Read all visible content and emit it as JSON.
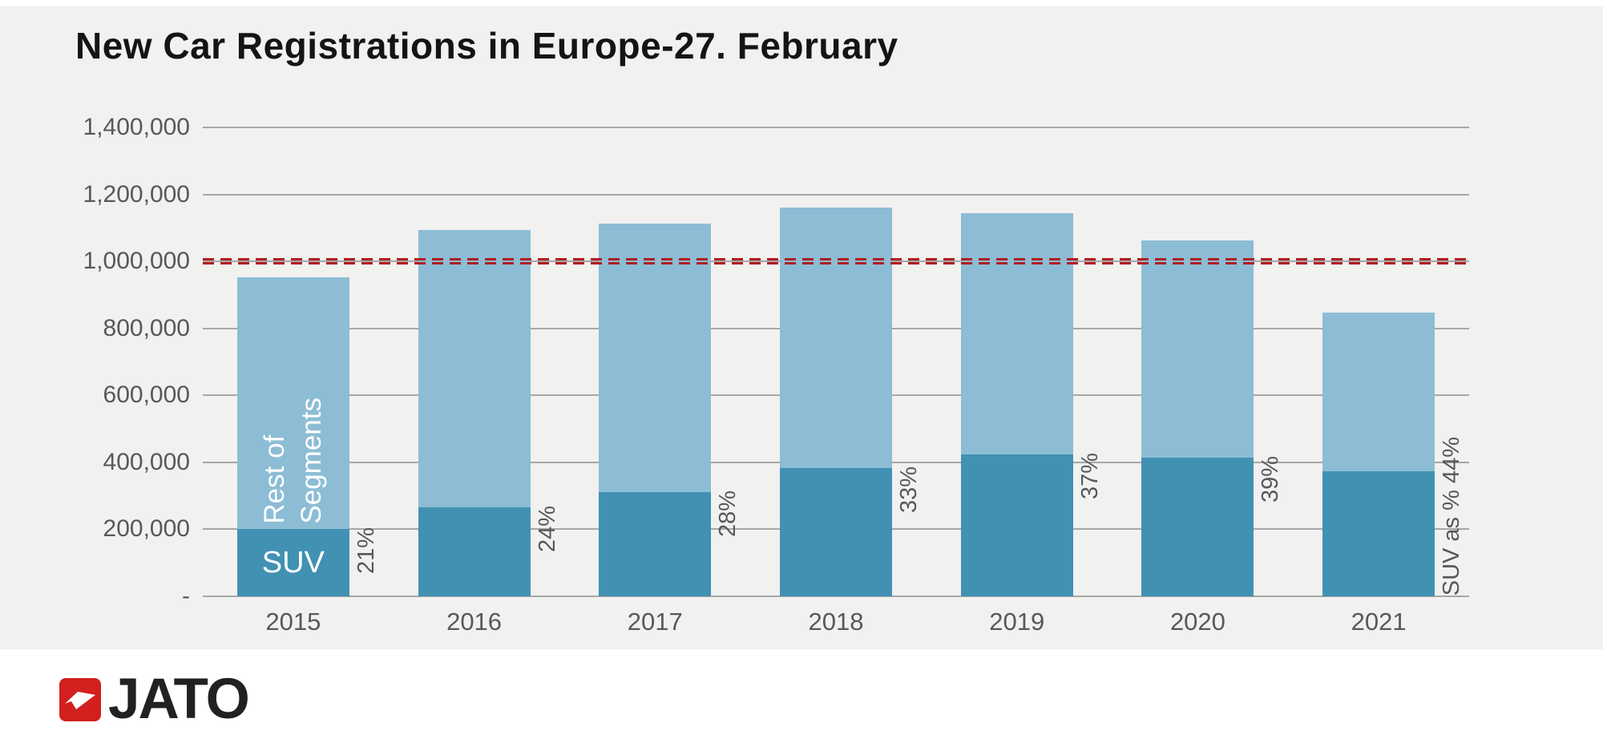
{
  "page": {
    "title": "New Car Registrations in Europe-27. February"
  },
  "colors": {
    "background": "#F1F1F0",
    "suv": "#4191B3",
    "rest_of_segments": "#8CBDD5",
    "reference_line_red": "#AF1F23",
    "gridline": "#A7A7A7",
    "axis_text": "#58585A",
    "title_text": "#141414",
    "logo_red": "#D2201E"
  },
  "chart_data": {
    "type": "bar",
    "stacked": true,
    "title": "New Car Registrations in Europe-27. February",
    "categories": [
      "2015",
      "2016",
      "2017",
      "2018",
      "2019",
      "2020",
      "2021"
    ],
    "series": [
      {
        "name": "SUV",
        "color": "#4191B3",
        "values": [
          200000,
          266000,
          311000,
          383000,
          424000,
          414000,
          373000
        ]
      },
      {
        "name": "Rest of Segments",
        "color": "#8CBDD5",
        "values": [
          753000,
          828000,
          801000,
          777000,
          721000,
          649000,
          475000
        ]
      }
    ],
    "totals": [
      953000,
      1094000,
      1112000,
      1160000,
      1145000,
      1063000,
      848000
    ],
    "suv_share_labels": [
      "21%",
      "24%",
      "28%",
      "33%",
      "37%",
      "39%",
      "SUV as % 44%"
    ],
    "y_ticks": [
      {
        "label": "1,400,000",
        "value": 1400000
      },
      {
        "label": "1,200,000",
        "value": 1200000
      },
      {
        "label": "1,000,000",
        "value": 1000000
      },
      {
        "label": "800,000",
        "value": 800000
      },
      {
        "label": "600,000",
        "value": 600000
      },
      {
        "label": "400,000",
        "value": 400000
      },
      {
        "label": "200,000",
        "value": 200000
      },
      {
        "label": "-",
        "value": 0
      }
    ],
    "ylim": [
      0,
      1400000
    ],
    "grid": true,
    "legend_position": "in-bar",
    "reference_line": {
      "value": 1000000,
      "style": "double-dashed",
      "color": "#AF1F23"
    },
    "bar_annotations": {
      "suv": "SUV",
      "rest_lines": [
        "Rest of",
        "Segments"
      ]
    }
  },
  "footer": {
    "logo_text": "JATO"
  }
}
